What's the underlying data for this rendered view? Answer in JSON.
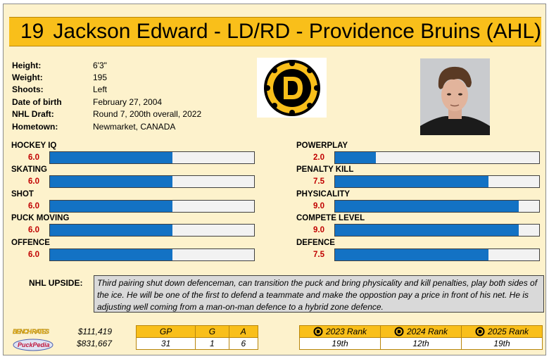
{
  "header": {
    "number": "19",
    "title": "Jackson Edward - LD/RD - Providence Bruins (AHL)"
  },
  "info": [
    {
      "label": "Height:",
      "value": "6'3\""
    },
    {
      "label": "Weight:",
      "value": "195"
    },
    {
      "label": "Shoots:",
      "value": "Left"
    },
    {
      "label": "Date of birth",
      "value": "February 27, 2004"
    },
    {
      "label": "NHL Draft:",
      "value": "Round 7, 200th overall, 2022"
    },
    {
      "label": "Hometown:",
      "value": "Newmarket, CANADA"
    }
  ],
  "skills_left": [
    {
      "name": "HOCKEY IQ",
      "value": "6.0",
      "level": 0.6
    },
    {
      "name": "SKATING",
      "value": "6.0",
      "level": 0.6
    },
    {
      "name": "SHOT",
      "value": "6.0",
      "level": 0.6
    },
    {
      "name": "PUCK MOVING",
      "value": "6.0",
      "level": 0.6
    },
    {
      "name": "OFFENCE",
      "value": "6.0",
      "level": 0.6
    }
  ],
  "skills_right": [
    {
      "name": "POWERPLAY",
      "value": "2.0",
      "level": 0.2
    },
    {
      "name": "PENALTY KILL",
      "value": "7.5",
      "level": 0.75
    },
    {
      "name": "PHYSICALITY",
      "value": "9.0",
      "level": 0.9
    },
    {
      "name": "COMPETE LEVEL",
      "value": "9.0",
      "level": 0.9
    },
    {
      "name": "DEFENCE",
      "value": "7.5",
      "level": 0.75
    }
  ],
  "upside": {
    "label": "NHL UPSIDE:",
    "text": "Third pairing shut down defenceman, can transition the puck and bring physicality and kill penalties, play both sides of the ice. He will be one of the first to defend a teammate and make the oppostion pay a price in front of his net. He is adjusting well coming from a man-on-man defence to a hybrid zone defence."
  },
  "salaries": {
    "bench_rates": "$111,419",
    "puck_pedia": "$831,667"
  },
  "stats": {
    "headers": [
      "GP",
      "G",
      "A"
    ],
    "values": [
      "31",
      "1",
      "6"
    ]
  },
  "ranks": {
    "headers": [
      "2023 Rank",
      "2024 Rank",
      "2025 Rank"
    ],
    "values": [
      "19th",
      "12th",
      "19th"
    ]
  },
  "brand": {
    "top": "BENCH RATES",
    "bottom": "PuckPedia"
  },
  "colors": {
    "header": "#f9bf1a",
    "card_bg": "#fdf2cc",
    "bar_fill": "#1372c4",
    "value_red": "#c00000"
  },
  "icons": {
    "team_logo": "bruins-logo-icon",
    "rank_badge": "bruins-badge-icon"
  }
}
